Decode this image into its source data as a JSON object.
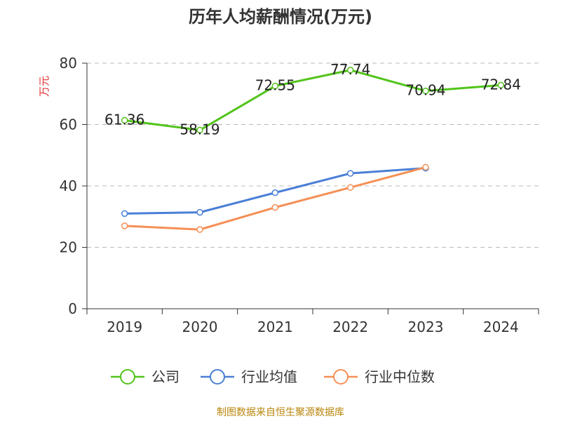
{
  "title": "历年人均薪酬情况(万元)",
  "source_note": "制图数据来自恒生聚源数据库",
  "chart_data": {
    "type": "line",
    "title": "历年人均薪酬情况(万元)",
    "ylabel": "万元",
    "xlabel": "",
    "categories": [
      "2019",
      "2020",
      "2021",
      "2022",
      "2023",
      "2024"
    ],
    "ylim": [
      0,
      80
    ],
    "yticks": [
      0,
      20,
      40,
      60,
      80
    ],
    "grid": true,
    "legend_position": "bottom",
    "series": [
      {
        "name": "公司",
        "color": "#52c41a",
        "values": [
          61.36,
          58.19,
          72.55,
          77.74,
          70.94,
          72.84
        ],
        "labels": [
          "61.36",
          "58.19",
          "72.55",
          "77.74",
          "70.94",
          "72.84"
        ]
      },
      {
        "name": "行业均值",
        "color": "#4a7fd6",
        "values": [
          31.0,
          31.4,
          37.8,
          44.1,
          45.8,
          null
        ]
      },
      {
        "name": "行业中位数",
        "color": "#f59056",
        "values": [
          27.0,
          25.8,
          33.0,
          39.5,
          46.1,
          null
        ]
      }
    ]
  }
}
